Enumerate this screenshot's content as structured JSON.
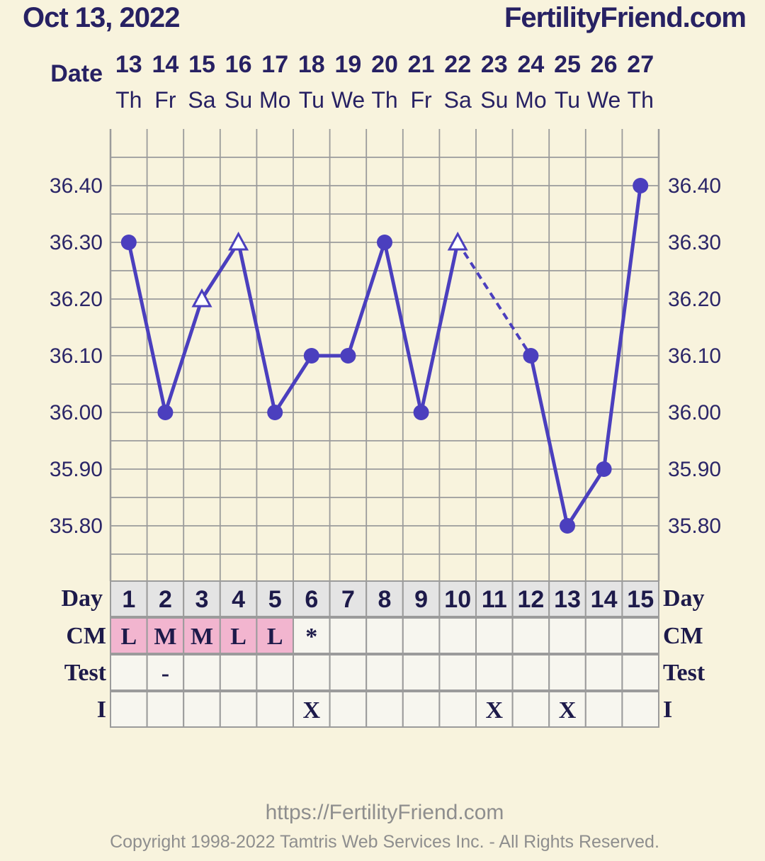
{
  "header": {
    "date": "Oct 13, 2022",
    "site": "FertilityFriend.com"
  },
  "labels": {
    "date_row": "Date",
    "day_row": "Day",
    "cm_row": "CM",
    "test_row": "Test",
    "i_row": "I"
  },
  "chart_data": {
    "type": "line",
    "title": "",
    "xlabel": "",
    "ylabel": "",
    "ylim": [
      35.7,
      36.5
    ],
    "yticks": [
      "35.80",
      "35.90",
      "36.00",
      "36.10",
      "36.20",
      "36.30",
      "36.40"
    ],
    "grid": true,
    "dates": [
      "13",
      "14",
      "15",
      "16",
      "17",
      "18",
      "19",
      "20",
      "21",
      "22",
      "23",
      "24",
      "25",
      "26",
      "27"
    ],
    "weekdays": [
      "Th",
      "Fr",
      "Sa",
      "Su",
      "Mo",
      "Tu",
      "We",
      "Th",
      "Fr",
      "Sa",
      "Su",
      "Mo",
      "Tu",
      "We",
      "Th"
    ],
    "days": [
      "1",
      "2",
      "3",
      "4",
      "5",
      "6",
      "7",
      "8",
      "9",
      "10",
      "11",
      "12",
      "13",
      "14",
      "15"
    ],
    "temps": [
      36.3,
      36.0,
      36.2,
      36.3,
      36.0,
      36.1,
      36.1,
      36.3,
      36.0,
      36.3,
      null,
      36.1,
      35.8,
      35.9,
      36.4
    ],
    "markers": [
      "dot",
      "dot",
      "triangle",
      "triangle",
      "dot",
      "dot",
      "dot",
      "dot",
      "dot",
      "triangle",
      null,
      "dot",
      "dot",
      "dot",
      "dot"
    ],
    "dashed_segments": [
      [
        9,
        11
      ]
    ],
    "cm": [
      "L",
      "M",
      "M",
      "L",
      "L",
      "*",
      "",
      "",
      "",
      "",
      "",
      "",
      "",
      "",
      ""
    ],
    "cm_highlight": [
      true,
      true,
      true,
      true,
      true,
      false,
      false,
      false,
      false,
      false,
      false,
      false,
      false,
      false,
      false
    ],
    "test": [
      "",
      "-",
      "",
      "",
      "",
      "",
      "",
      "",
      "",
      "",
      "",
      "",
      "",
      "",
      ""
    ],
    "i": [
      "",
      "",
      "",
      "",
      "",
      "X",
      "",
      "",
      "",
      "",
      "X",
      "",
      "X",
      "",
      ""
    ]
  },
  "colors": {
    "line": "#4b3fbe",
    "grid": "#9b9b9b",
    "cm_fill": "#f2b5cf",
    "day_fill": "#e4e4e4",
    "cell_fill": "#f7f6ef"
  },
  "footer": {
    "url": "https://FertilityFriend.com",
    "copyright": "Copyright 1998-2022 Tamtris Web Services Inc. - All Rights Reserved."
  }
}
